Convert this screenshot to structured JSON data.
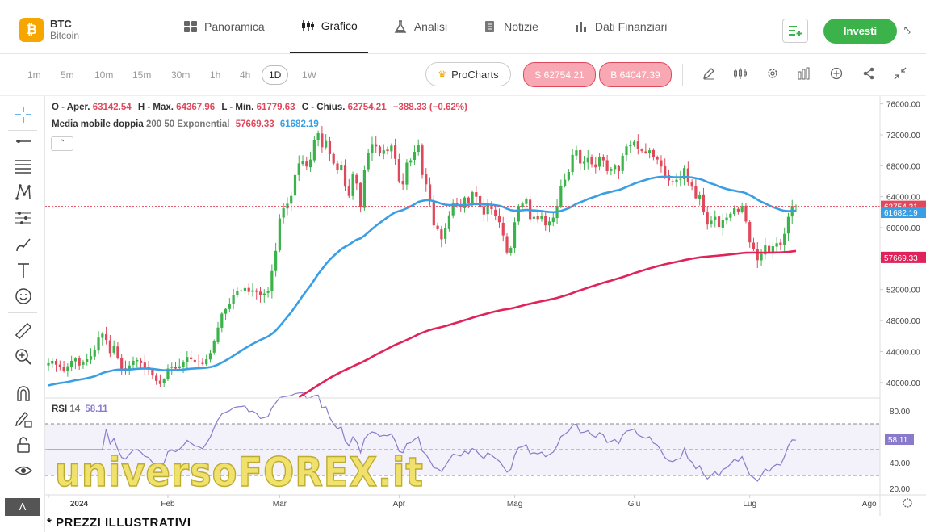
{
  "brand": {
    "logo": "₿",
    "ticker": "BTC",
    "name": "Bitcoin"
  },
  "nav": {
    "tabs": [
      {
        "label": "Panoramica",
        "icon": "grid-icon"
      },
      {
        "label": "Grafico",
        "icon": "candles-icon"
      },
      {
        "label": "Analisi",
        "icon": "flask-icon"
      },
      {
        "label": "Notizie",
        "icon": "document-icon"
      },
      {
        "label": "Dati Finanziari",
        "icon": "bars-icon"
      }
    ],
    "active_tab": "Grafico",
    "invest_label": "Investi"
  },
  "toolbar": {
    "timeframes": [
      "1m",
      "5m",
      "10m",
      "15m",
      "30m",
      "1h",
      "4h",
      "1D",
      "1W"
    ],
    "active_timeframe": "1D",
    "procharts_label": "ProCharts",
    "sell_label": "S 62754.21",
    "buy_label": "B 64047.39",
    "icons": [
      "pencil-icon",
      "candles-icon",
      "gear-icon",
      "bar-chart-icon",
      "plus-circle-icon",
      "share-icon",
      "collapse-icon"
    ]
  },
  "left_tools": [
    "crosshair-icon",
    "line-icon",
    "fib-icon",
    "pattern-icon",
    "measure-icon",
    "brush-icon",
    "text-icon",
    "emoji-icon",
    "ruler-icon",
    "zoom-icon",
    "magnet-icon",
    "lock-pencil-icon",
    "lock-icon",
    "eye-icon",
    "collapse-icon"
  ],
  "legend": {
    "o_label": "O - Aper.",
    "o_value": "63142.54",
    "h_label": "H - Max.",
    "h_value": "64367.96",
    "l_label": "L - Min.",
    "l_value": "61779.63",
    "c_label": "C - Chius.",
    "c_value": "62754.21",
    "change": "−388.33 (−0.62%)",
    "ma_label": "Media mobile doppia",
    "ma_params": "200 50 Exponential",
    "ma200_value": "57669.33",
    "ma50_value": "61682.19",
    "rsi_label": "RSI",
    "rsi_param": "14",
    "rsi_value": "58.11"
  },
  "chart_data": {
    "type": "line",
    "price_axis": {
      "min": 38000,
      "max": 77000,
      "ticks": [
        "76000.00",
        "72000.00",
        "68000.00",
        "64000.00",
        "60000.00",
        "56000.00",
        "52000.00",
        "48000.00",
        "44000.00",
        "40000.00"
      ]
    },
    "rsi_axis": {
      "min": 15,
      "max": 90,
      "ticks": [
        "80.00",
        "60.00",
        "40.00",
        "20.00"
      ],
      "levels": [
        70,
        50,
        30
      ]
    },
    "x_labels": [
      "2024",
      "Feb",
      "Mar",
      "Apr",
      "Mag",
      "Giu",
      "Lug",
      "Ago"
    ],
    "last_price_label": "62754.21",
    "ma50_label": "61682.19",
    "ma200_label": "57669.33",
    "rsi_last_label": "58.11",
    "closes": [
      42500,
      42800,
      42300,
      42000,
      41500,
      42100,
      42800,
      43100,
      42200,
      42600,
      43000,
      43400,
      44200,
      45800,
      46300,
      45500,
      43800,
      44700,
      43200,
      41800,
      41500,
      42200,
      42800,
      42900,
      42500,
      41900,
      41700,
      40900,
      40200,
      39800,
      40400,
      41800,
      42000,
      41800,
      42100,
      42600,
      43300,
      43000,
      42700,
      42600,
      42400,
      43000,
      43800,
      45300,
      47100,
      48900,
      49500,
      50100,
      51300,
      51800,
      51900,
      52200,
      51700,
      51900,
      51700,
      51300,
      51500,
      51800,
      54400,
      57000,
      61200,
      62500,
      63100,
      64100,
      66800,
      68300,
      68600,
      67900,
      68800,
      71300,
      72200,
      70400,
      71200,
      69500,
      68300,
      67500,
      68100,
      65300,
      64100,
      66900,
      65700,
      62600,
      67500,
      69600,
      70800,
      70500,
      69600,
      70000,
      69900,
      70600,
      68900,
      66000,
      65600,
      68400,
      68700,
      69800,
      70700,
      66800,
      65600,
      63400,
      60300,
      59800,
      58500,
      59900,
      61600,
      63200,
      62900,
      62600,
      63900,
      63200,
      64600,
      64000,
      62700,
      61700,
      63100,
      62400,
      61500,
      60700,
      59000,
      56800,
      57400,
      60700,
      62800,
      63100,
      63700,
      61100,
      61400,
      61100,
      61500,
      60300,
      60800,
      61300,
      62800,
      65400,
      66200,
      67200,
      69400,
      70000,
      68300,
      68500,
      69000,
      68200,
      67800,
      69100,
      68700,
      67300,
      67600,
      68000,
      67300,
      69300,
      70500,
      70700,
      71100,
      70200,
      69900,
      69700,
      70000,
      69100,
      68800,
      67900,
      66700,
      66100,
      65900,
      66200,
      66300,
      67700,
      65900,
      65300,
      63800,
      64200,
      62000,
      60400,
      60900,
      61400,
      60100,
      61000,
      61300,
      61800,
      62500,
      62100,
      62800,
      60800,
      58100,
      57200,
      55800,
      56600,
      57700,
      56800,
      57600,
      58000,
      57800,
      59200,
      61400,
      62800,
      62754
    ]
  },
  "disclaimer": "* PREZZI ILLUSTRATIVI",
  "watermark": "universoFOREX.it"
}
